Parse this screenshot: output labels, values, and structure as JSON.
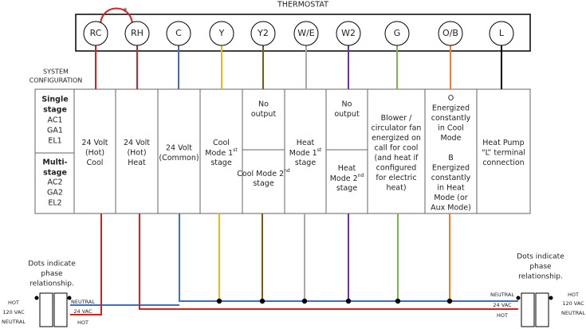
{
  "title": "THERMOSTAT",
  "jumper_note": "*",
  "terminals": [
    "RC",
    "RH",
    "C",
    "Y",
    "Y2",
    "W/E",
    "W2",
    "G",
    "O/B",
    "L"
  ],
  "system_configuration": [
    "SYSTEM",
    "CONFIGURATION"
  ],
  "configurations": [
    {
      "title": [
        "Single",
        "stage"
      ],
      "models": [
        "AC1",
        "GA1",
        "EL1"
      ]
    },
    {
      "title": [
        "Multi-",
        "stage"
      ],
      "models": [
        "AC2",
        "GA2",
        "EL2"
      ]
    }
  ],
  "functions": [
    {
      "lines": [
        "24 Volt",
        "(Hot)",
        "Cool"
      ]
    },
    {
      "lines": [
        "24 Volt",
        "(Hot)",
        "Heat"
      ]
    },
    {
      "lines": [
        "24 Volt",
        "(Common)"
      ]
    },
    {
      "lines": [
        "Cool",
        {
          "text": "Mode 1",
          "sup": "st"
        },
        "stage"
      ]
    },
    {
      "top": [
        "No",
        "output"
      ],
      "bottom": [
        {
          "text": "Cool Mode 2",
          "sup": "nd"
        },
        "stage"
      ]
    },
    {
      "lines": [
        "Heat",
        {
          "text": "Mode 1",
          "sup": "st"
        },
        "stage"
      ]
    },
    {
      "top": [
        "No",
        "output"
      ],
      "bottom": [
        "Heat",
        {
          "text": "Mode 2",
          "sup": "nd"
        },
        "stage"
      ]
    },
    {
      "lines": [
        "Blower /",
        "circulator fan",
        "energized on",
        "call for cool",
        "(and heat if",
        "configured",
        "for electric",
        "heat)"
      ]
    },
    {
      "lines": [
        "O",
        "Energized",
        "constantly",
        "in Cool",
        "Mode",
        "",
        "B",
        "Energized",
        "constantly",
        "in Heat",
        "Mode (or",
        "Aux Mode)"
      ]
    },
    {
      "lines": [
        "Heat Pump",
        "“L” terminal",
        "connection"
      ]
    }
  ],
  "left_transformer": {
    "note": [
      "Dots indicate",
      "phase",
      "relationship."
    ],
    "primary": [
      "HOT",
      "120 VAC",
      "NEUTRAL"
    ],
    "secondary": [
      "NEUTRAL",
      "24 VAC",
      "HOT"
    ]
  },
  "right_transformer": {
    "note": [
      "Dots indicate",
      "phase",
      "relationship."
    ],
    "primary": [
      "HOT",
      "120 VAC",
      "NEUTRAL"
    ],
    "secondary": [
      "NEUTRAL",
      "24 VAC",
      "HOT"
    ]
  }
}
